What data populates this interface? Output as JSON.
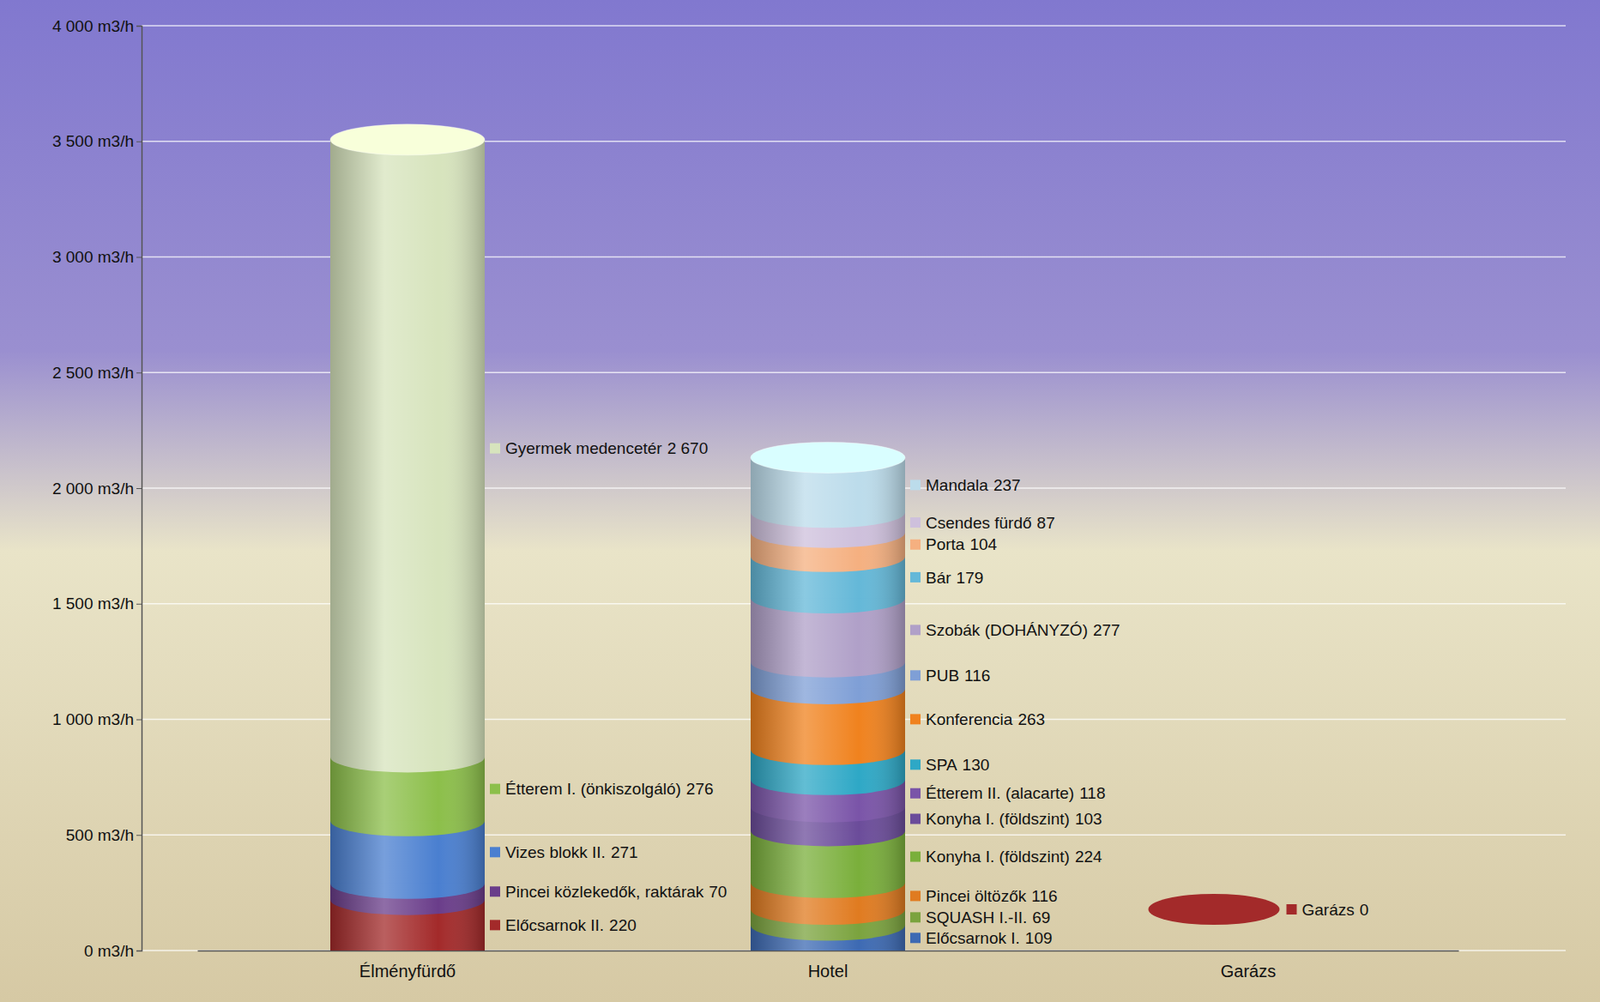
{
  "chart_data": {
    "type": "stacked_cylinder",
    "stacked": true,
    "data_labels": true,
    "grid": true,
    "categories": [
      "Élményfürdő",
      "Hotel",
      "Garázs"
    ],
    "ylim": [
      0,
      4000
    ],
    "yticks": [
      {
        "value": 0,
        "label": "0 m3/h"
      },
      {
        "value": 500,
        "label": "500 m3/h"
      },
      {
        "value": 1000,
        "label": "1 000 m3/h"
      },
      {
        "value": 1500,
        "label": "1 500 m3/h"
      },
      {
        "value": 2000,
        "label": "2 000 m3/h"
      },
      {
        "value": 2500,
        "label": "2 500 m3/h"
      },
      {
        "value": 3000,
        "label": "3 000 m3/h"
      },
      {
        "value": 3500,
        "label": "3 500 m3/h"
      },
      {
        "value": 4000,
        "label": "4 000 m3/h"
      }
    ],
    "stacks": [
      {
        "names": [
          "Előcsarnok II.",
          "Pincei közlekedők, raktárak",
          "Vizes blokk II.",
          "Étterem I. (önkiszolgáló)",
          "Gyermek medencetér"
        ],
        "values": [
          220,
          70,
          271,
          276,
          2670
        ],
        "value_labels": [
          "220",
          "70",
          "271",
          "276",
          "2 670"
        ],
        "colors": [
          "#a32a2a",
          "#6a3d8a",
          "#4a7fd0",
          "#8cbf4a",
          "#d7e4bd"
        ]
      },
      {
        "names": [
          "Előcsarnok I.",
          "SQUASH I.-II.",
          "Pincei öltözők",
          "Konyha I. (földszint)",
          "Konyha I. (földszint)",
          "Étterem II. (alacarte)",
          "SPA",
          "Konferencia",
          "PUB",
          "Szobák (DOHÁNYZÓ)",
          "Bár",
          "Porta",
          "Csendes fürdő",
          "Mandala"
        ],
        "values": [
          109,
          69,
          116,
          224,
          103,
          118,
          130,
          263,
          116,
          277,
          179,
          104,
          87,
          237
        ],
        "value_labels": [
          "109",
          "69",
          "116",
          "224",
          "103",
          "118",
          "130",
          "263",
          "116",
          "277",
          "179",
          "104",
          "87",
          "237"
        ],
        "colors": [
          "#3d6ab3",
          "#7ba33e",
          "#e07b20",
          "#7aaf3b",
          "#6b4c9a",
          "#7a54a8",
          "#2ea8c6",
          "#f0821e",
          "#7f9fd6",
          "#b0a0c8",
          "#64b8d8",
          "#f5b080",
          "#cec0dc",
          "#bcdceb"
        ]
      },
      {
        "names": [
          "Garázs"
        ],
        "values": [
          0
        ],
        "value_labels": [
          "0"
        ],
        "colors": [
          "#a32a2a"
        ]
      }
    ]
  }
}
